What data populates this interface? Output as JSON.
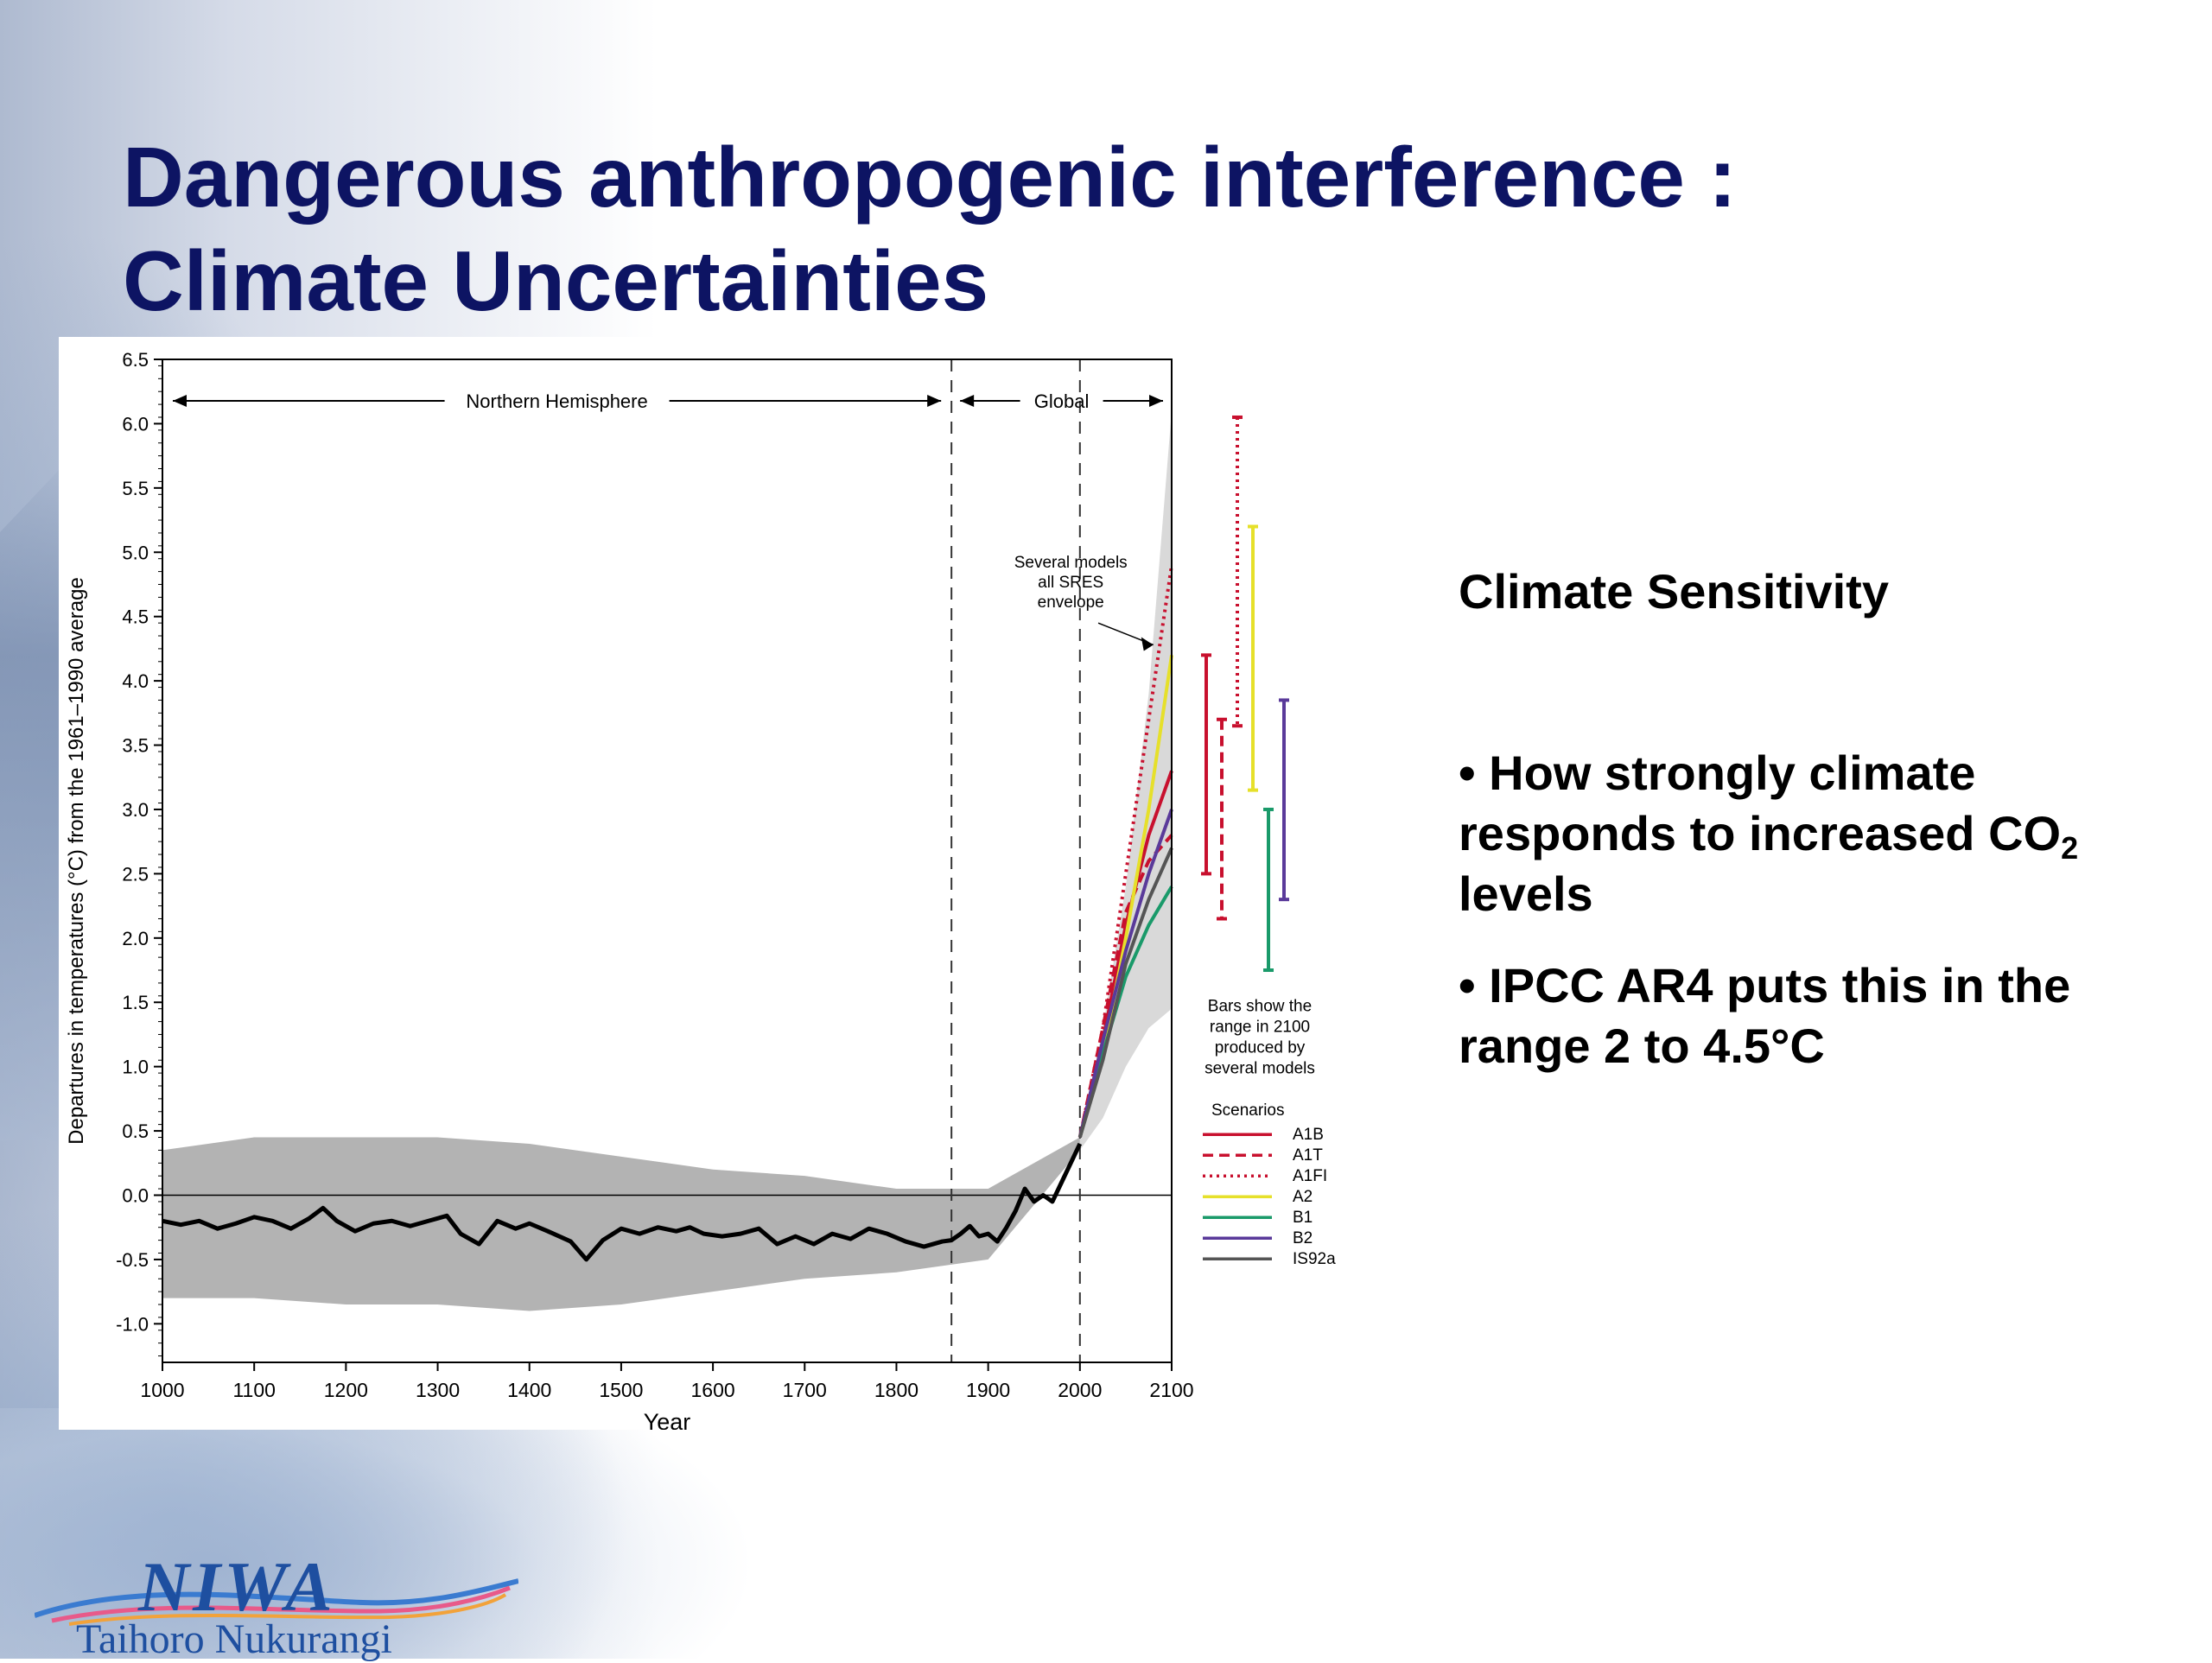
{
  "slide": {
    "title_line1": "Dangerous anthropogenic interference :",
    "title_line2": "Climate Uncertainties",
    "colors": {
      "title": "#0d1463",
      "text": "#000000",
      "shading": "#b3b3b3"
    }
  },
  "sidebar": {
    "heading": "Climate Sensitivity",
    "bullet1_text": "• How strongly climate responds to increased CO",
    "bullet1_sub": "2",
    "bullet1_tail": " levels",
    "bullet2": "• IPCC AR4 puts this in the range 2 to 4.5°C"
  },
  "logo": {
    "mark": "NIWA",
    "subtitle": "Taihoro Nukurangi"
  },
  "chart_data": {
    "type": "line",
    "xlabel": "Year",
    "ylabel": "Departures in temperatures (°C) from the 1961–1990 average",
    "xlim": [
      1000,
      2100
    ],
    "ylim": [
      -1.3,
      6.5
    ],
    "xticks": [
      1000,
      1100,
      1200,
      1300,
      1400,
      1500,
      1600,
      1700,
      1800,
      1900,
      2000,
      2100
    ],
    "yticks": [
      -1.0,
      -0.5,
      0.0,
      0.5,
      1.0,
      1.5,
      2.0,
      2.5,
      3.0,
      3.5,
      4.0,
      4.5,
      5.0,
      5.5,
      6.0,
      6.5
    ],
    "ytick_labels": [
      "-1.0",
      "-0.5",
      "0.0",
      "0.5",
      "1.0",
      "1.5",
      "2.0",
      "2.5",
      "3.0",
      "3.5",
      "4.0",
      "4.5",
      "5.0",
      "5.5",
      "6.0",
      "6.5"
    ],
    "region_labels": {
      "nh": "Northern Hemisphere",
      "global": "Global"
    },
    "dividers_x": [
      1860,
      2000
    ],
    "annotation_envelope": [
      "Several models",
      "all SRES",
      "envelope"
    ],
    "annotation_bars": [
      "Bars show the",
      "range in 2100",
      "produced by",
      "several models"
    ],
    "legend_title": "Scenarios",
    "historical": {
      "x": [
        1000,
        1020,
        1040,
        1060,
        1080,
        1100,
        1120,
        1140,
        1160,
        1175,
        1190,
        1210,
        1230,
        1250,
        1270,
        1290,
        1310,
        1325,
        1345,
        1365,
        1385,
        1400,
        1420,
        1445,
        1462,
        1480,
        1500,
        1520,
        1540,
        1560,
        1575,
        1590,
        1610,
        1630,
        1650,
        1670,
        1690,
        1710,
        1730,
        1750,
        1770,
        1790,
        1810,
        1830,
        1850,
        1860,
        1870,
        1880,
        1890,
        1900,
        1910,
        1920,
        1930,
        1940,
        1950,
        1960,
        1970,
        1980,
        1990,
        2000
      ],
      "y": [
        -0.2,
        -0.23,
        -0.2,
        -0.26,
        -0.22,
        -0.17,
        -0.2,
        -0.26,
        -0.18,
        -0.1,
        -0.2,
        -0.28,
        -0.22,
        -0.2,
        -0.24,
        -0.2,
        -0.16,
        -0.3,
        -0.38,
        -0.2,
        -0.26,
        -0.22,
        -0.28,
        -0.36,
        -0.5,
        -0.35,
        -0.26,
        -0.3,
        -0.25,
        -0.28,
        -0.25,
        -0.3,
        -0.32,
        -0.3,
        -0.26,
        -0.38,
        -0.32,
        -0.38,
        -0.3,
        -0.34,
        -0.26,
        -0.3,
        -0.36,
        -0.4,
        -0.36,
        -0.35,
        -0.3,
        -0.24,
        -0.32,
        -0.3,
        -0.36,
        -0.25,
        -0.12,
        0.05,
        -0.05,
        0.0,
        -0.05,
        0.1,
        0.25,
        0.4
      ]
    },
    "uncertainty_band": {
      "x": [
        1000,
        1100,
        1200,
        1300,
        1400,
        1500,
        1600,
        1700,
        1800,
        1900,
        2000
      ],
      "upper": [
        0.35,
        0.45,
        0.45,
        0.45,
        0.4,
        0.3,
        0.2,
        0.15,
        0.05,
        0.05,
        0.45
      ],
      "lower": [
        -0.8,
        -0.8,
        -0.85,
        -0.85,
        -0.9,
        -0.85,
        -0.75,
        -0.65,
        -0.6,
        -0.5,
        0.35
      ]
    },
    "sres_envelope": {
      "x": [
        2000,
        2025,
        2050,
        2075,
        2100
      ],
      "upper": [
        0.45,
        1.3,
        2.4,
        3.9,
        6.1
      ],
      "lower": [
        0.35,
        0.6,
        1.0,
        1.3,
        1.45
      ]
    },
    "series": [
      {
        "name": "A1B",
        "x": [
          2000,
          2025,
          2050,
          2075,
          2100
        ],
        "y": [
          0.45,
          1.2,
          2.1,
          2.8,
          3.3
        ],
        "color": "#c8102e",
        "dash": "solid"
      },
      {
        "name": "A1T",
        "x": [
          2000,
          2025,
          2050,
          2075,
          2100
        ],
        "y": [
          0.45,
          1.3,
          2.2,
          2.6,
          2.8
        ],
        "color": "#c8102e",
        "dash": "dashed"
      },
      {
        "name": "A1FI",
        "x": [
          2000,
          2025,
          2050,
          2075,
          2100
        ],
        "y": [
          0.45,
          1.3,
          2.5,
          3.7,
          4.9
        ],
        "color": "#c8102e",
        "dash": "dotted"
      },
      {
        "name": "A2",
        "x": [
          2000,
          2025,
          2050,
          2075,
          2100
        ],
        "y": [
          0.45,
          1.1,
          2.0,
          3.0,
          4.2
        ],
        "color": "#e6e02a",
        "dash": "solid"
      },
      {
        "name": "B1",
        "x": [
          2000,
          2025,
          2050,
          2075,
          2100
        ],
        "y": [
          0.45,
          1.1,
          1.7,
          2.1,
          2.4
        ],
        "color": "#1a9a6a",
        "dash": "solid"
      },
      {
        "name": "B2",
        "x": [
          2000,
          2025,
          2050,
          2075,
          2100
        ],
        "y": [
          0.45,
          1.2,
          1.9,
          2.5,
          3.0
        ],
        "color": "#5a3a9a",
        "dash": "solid"
      },
      {
        "name": "IS92a",
        "x": [
          2000,
          2025,
          2050,
          2075,
          2100
        ],
        "y": [
          0.45,
          1.05,
          1.8,
          2.3,
          2.7
        ],
        "color": "#555555",
        "dash": "solid"
      }
    ],
    "range_bars_2100": [
      {
        "name": "A1B",
        "low": 2.5,
        "high": 4.2,
        "color": "#c8102e",
        "dash": "solid"
      },
      {
        "name": "A1T",
        "low": 2.15,
        "high": 3.7,
        "color": "#c8102e",
        "dash": "dashed"
      },
      {
        "name": "A1FI",
        "low": 3.65,
        "high": 6.05,
        "color": "#c8102e",
        "dash": "dotted"
      },
      {
        "name": "A2",
        "low": 3.15,
        "high": 5.2,
        "color": "#e6e02a",
        "dash": "solid"
      },
      {
        "name": "B1",
        "low": 1.75,
        "high": 3.0,
        "color": "#1a9a6a",
        "dash": "solid"
      },
      {
        "name": "B2",
        "low": 2.3,
        "high": 3.85,
        "color": "#5a3a9a",
        "dash": "solid"
      }
    ],
    "grid": false,
    "legend_placement": "right"
  }
}
